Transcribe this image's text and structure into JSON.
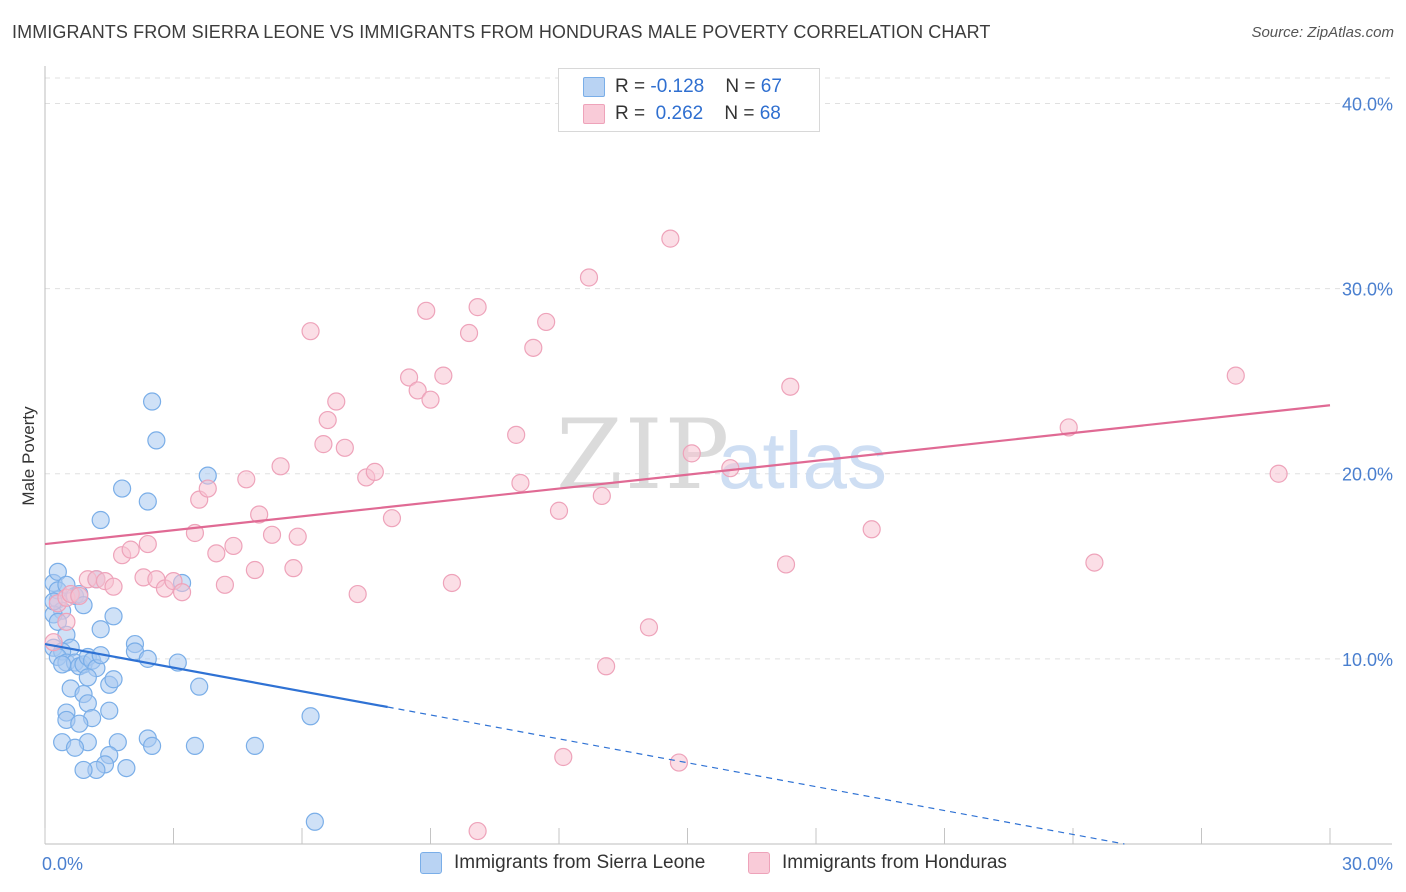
{
  "title": "IMMIGRANTS FROM SIERRA LEONE VS IMMIGRANTS FROM HONDURAS MALE POVERTY CORRELATION CHART",
  "source": "Source: ZipAtlas.com",
  "watermark": {
    "zip": "ZIP",
    "atlas": "atlas"
  },
  "legend": {
    "rows": [
      {
        "r_label": "R = ",
        "r_value": "-0.128",
        "n_label": "N = ",
        "n_value": "67",
        "color": "#a8c8f0"
      },
      {
        "r_label": "R = ",
        "r_value": " 0.262",
        "n_label": "N = ",
        "n_value": "68",
        "color": "#f7b6c8"
      }
    ]
  },
  "bottom_legend": [
    {
      "label": "Immigrants from Sierra Leone",
      "color": "#a8c8f0"
    },
    {
      "label": "Immigrants from Honduras",
      "color": "#f7b6c8"
    }
  ],
  "chart_data": {
    "type": "scatter",
    "title": "IMMIGRANTS FROM SIERRA LEONE VS IMMIGRANTS FROM HONDURAS MALE POVERTY CORRELATION CHART",
    "xlabel": "",
    "ylabel": "Male Poverty",
    "xlim": [
      0,
      30
    ],
    "ylim": [
      0,
      41.7
    ],
    "x_tick_labels": [
      "0.0%",
      "30.0%"
    ],
    "y_ticks": [
      10,
      20,
      30,
      40
    ],
    "y_tick_labels": [
      "10.0%",
      "20.0%",
      "30.0%",
      "40.0%"
    ],
    "grid": true,
    "series": [
      {
        "name": "Immigrants from Sierra Leone",
        "color": "#7aaee8",
        "fill": "#a8c8f0",
        "line_color": "#2f72d4",
        "trend": {
          "x0": 0,
          "y0": 10.8,
          "x1": 8.0,
          "y1": 7.4,
          "dash_to_x": 25.2,
          "dash_to_y": 0.0
        },
        "points": [
          [
            0.2,
            14.1
          ],
          [
            0.3,
            14.7
          ],
          [
            0.3,
            13.2
          ],
          [
            0.4,
            12.6
          ],
          [
            0.2,
            12.4
          ],
          [
            0.3,
            12.0
          ],
          [
            0.5,
            11.3
          ],
          [
            0.2,
            10.6
          ],
          [
            0.6,
            10.6
          ],
          [
            0.4,
            10.4
          ],
          [
            0.3,
            10.1
          ],
          [
            0.5,
            9.8
          ],
          [
            0.7,
            9.8
          ],
          [
            0.8,
            9.6
          ],
          [
            0.9,
            9.7
          ],
          [
            1.0,
            10.1
          ],
          [
            1.1,
            9.9
          ],
          [
            1.2,
            9.5
          ],
          [
            1.0,
            9.0
          ],
          [
            0.6,
            8.4
          ],
          [
            0.9,
            8.1
          ],
          [
            1.5,
            8.6
          ],
          [
            1.6,
            8.9
          ],
          [
            1.0,
            7.6
          ],
          [
            0.5,
            7.1
          ],
          [
            0.5,
            6.7
          ],
          [
            1.1,
            6.8
          ],
          [
            0.8,
            6.5
          ],
          [
            1.5,
            7.2
          ],
          [
            0.4,
            5.5
          ],
          [
            1.0,
            5.5
          ],
          [
            0.7,
            5.2
          ],
          [
            1.7,
            5.5
          ],
          [
            1.5,
            4.8
          ],
          [
            1.4,
            4.3
          ],
          [
            1.2,
            4.0
          ],
          [
            1.9,
            4.1
          ],
          [
            0.9,
            4.0
          ],
          [
            0.3,
            13.7
          ],
          [
            0.5,
            14.0
          ],
          [
            0.7,
            13.4
          ],
          [
            0.8,
            13.5
          ],
          [
            0.9,
            12.9
          ],
          [
            1.2,
            14.3
          ],
          [
            1.6,
            12.3
          ],
          [
            1.3,
            11.6
          ],
          [
            1.3,
            10.2
          ],
          [
            2.1,
            10.8
          ],
          [
            2.1,
            10.4
          ],
          [
            2.4,
            10.0
          ],
          [
            2.4,
            5.7
          ],
          [
            2.5,
            5.3
          ],
          [
            3.1,
            9.8
          ],
          [
            3.2,
            14.1
          ],
          [
            3.6,
            8.5
          ],
          [
            3.5,
            5.3
          ],
          [
            2.6,
            21.8
          ],
          [
            2.5,
            23.9
          ],
          [
            2.4,
            18.5
          ],
          [
            1.8,
            19.2
          ],
          [
            1.3,
            17.5
          ],
          [
            3.8,
            19.9
          ],
          [
            4.9,
            5.3
          ],
          [
            6.2,
            6.9
          ],
          [
            6.3,
            1.2
          ],
          [
            0.2,
            13.1
          ],
          [
            0.4,
            9.7
          ]
        ]
      },
      {
        "name": "Immigrants from Honduras",
        "color": "#eea3ba",
        "fill": "#f7c3d2",
        "line_color": "#e06a94",
        "trend": {
          "x0": 0,
          "y0": 16.2,
          "x1": 30.0,
          "y1": 23.7
        },
        "points": [
          [
            0.2,
            10.9
          ],
          [
            0.5,
            12.0
          ],
          [
            0.3,
            13.0
          ],
          [
            0.5,
            13.3
          ],
          [
            0.6,
            13.5
          ],
          [
            0.8,
            13.4
          ],
          [
            1.0,
            14.3
          ],
          [
            1.2,
            14.3
          ],
          [
            1.4,
            14.2
          ],
          [
            1.6,
            13.9
          ],
          [
            1.8,
            15.6
          ],
          [
            2.0,
            15.9
          ],
          [
            2.3,
            14.4
          ],
          [
            2.4,
            16.2
          ],
          [
            2.6,
            14.3
          ],
          [
            2.8,
            13.8
          ],
          [
            3.0,
            14.2
          ],
          [
            3.2,
            13.6
          ],
          [
            3.5,
            16.8
          ],
          [
            3.6,
            18.6
          ],
          [
            3.8,
            19.2
          ],
          [
            4.0,
            15.7
          ],
          [
            4.2,
            14.0
          ],
          [
            4.4,
            16.1
          ],
          [
            4.7,
            19.7
          ],
          [
            4.9,
            14.8
          ],
          [
            5.0,
            17.8
          ],
          [
            5.3,
            16.7
          ],
          [
            5.5,
            20.4
          ],
          [
            5.8,
            14.9
          ],
          [
            5.9,
            16.6
          ],
          [
            6.2,
            27.7
          ],
          [
            6.5,
            21.6
          ],
          [
            6.6,
            22.9
          ],
          [
            6.8,
            23.9
          ],
          [
            7.0,
            21.4
          ],
          [
            7.3,
            13.5
          ],
          [
            7.5,
            19.8
          ],
          [
            7.7,
            20.1
          ],
          [
            8.1,
            17.6
          ],
          [
            8.5,
            25.2
          ],
          [
            8.7,
            24.5
          ],
          [
            8.9,
            28.8
          ],
          [
            9.0,
            24.0
          ],
          [
            9.3,
            25.3
          ],
          [
            9.5,
            14.1
          ],
          [
            9.9,
            27.6
          ],
          [
            10.1,
            29.0
          ],
          [
            11.0,
            22.1
          ],
          [
            11.1,
            19.5
          ],
          [
            11.4,
            26.8
          ],
          [
            11.7,
            28.2
          ],
          [
            12.0,
            18.0
          ],
          [
            12.7,
            30.6
          ],
          [
            13.0,
            18.8
          ],
          [
            13.1,
            9.6
          ],
          [
            14.1,
            11.7
          ],
          [
            14.6,
            32.7
          ],
          [
            14.8,
            4.4
          ],
          [
            15.1,
            21.1
          ],
          [
            16.0,
            20.3
          ],
          [
            17.3,
            15.1
          ],
          [
            17.4,
            24.7
          ],
          [
            19.3,
            17.0
          ],
          [
            23.9,
            22.5
          ],
          [
            24.5,
            15.2
          ],
          [
            27.8,
            25.3
          ],
          [
            28.8,
            20.0
          ]
        ],
        "extra_points": [
          [
            10.1,
            0.7
          ],
          [
            12.1,
            4.7
          ]
        ]
      }
    ]
  }
}
